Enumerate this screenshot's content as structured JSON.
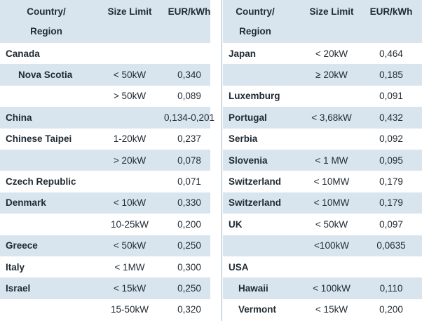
{
  "headers": {
    "country_line1": "Country/",
    "country_line2": "Region",
    "size": "Size Limit",
    "eur": "EUR/kWh"
  },
  "left_rows": [
    {
      "country": "Canada",
      "size": "",
      "eur": "",
      "indent": false,
      "shaded": false
    },
    {
      "country": "Nova Scotia",
      "size": "< 50kW",
      "eur": "0,340",
      "indent": true,
      "shaded": true
    },
    {
      "country": "",
      "size": "> 50kW",
      "eur": "0,089",
      "indent": false,
      "shaded": false
    },
    {
      "country": "China",
      "size": "",
      "eur": "0,134-0,201",
      "indent": false,
      "shaded": true
    },
    {
      "country": "Chinese Taipei",
      "size": "1-20kW",
      "eur": "0,237",
      "indent": false,
      "shaded": false
    },
    {
      "country": "",
      "size": "> 20kW",
      "eur": "0,078",
      "indent": false,
      "shaded": true
    },
    {
      "country": "Czech Republic",
      "size": "",
      "eur": "0,071",
      "indent": false,
      "shaded": false
    },
    {
      "country": "Denmark",
      "size": "< 10kW",
      "eur": "0,330",
      "indent": false,
      "shaded": true
    },
    {
      "country": "",
      "size": "10-25kW",
      "eur": "0,200",
      "indent": false,
      "shaded": false
    },
    {
      "country": "Greece",
      "size": "< 50kW",
      "eur": "0,250",
      "indent": false,
      "shaded": true
    },
    {
      "country": "Italy",
      "size": "< 1MW",
      "eur": "0,300",
      "indent": false,
      "shaded": false
    },
    {
      "country": "Israel",
      "size": "< 15kW",
      "eur": "0,250",
      "indent": false,
      "shaded": true
    },
    {
      "country": "",
      "size": "15-50kW",
      "eur": "0,320",
      "indent": false,
      "shaded": false
    }
  ],
  "right_rows": [
    {
      "country": "Japan",
      "size": "< 20kW",
      "eur": "0,464",
      "indent": false,
      "shaded": false
    },
    {
      "country": "",
      "size": "≥ 20kW",
      "eur": "0,185",
      "indent": false,
      "shaded": true
    },
    {
      "country": "Luxemburg",
      "size": "",
      "eur": "0,091",
      "indent": false,
      "shaded": false
    },
    {
      "country": "Portugal",
      "size": "< 3,68kW",
      "eur": "0,432",
      "indent": false,
      "shaded": true
    },
    {
      "country": "Serbia",
      "size": "",
      "eur": "0,092",
      "indent": false,
      "shaded": false
    },
    {
      "country": "Slovenia",
      "size": "< 1 MW",
      "eur": "0,095",
      "indent": false,
      "shaded": true
    },
    {
      "country": "Switzerland",
      "size": "< 10MW",
      "eur": "0,179",
      "indent": false,
      "shaded": false
    },
    {
      "country": "Switzerland",
      "size": "< 10MW",
      "eur": "0,179",
      "indent": false,
      "shaded": true
    },
    {
      "country": "UK",
      "size": "< 50kW",
      "eur": "0,097",
      "indent": false,
      "shaded": false
    },
    {
      "country": "",
      "size": "<100kW",
      "eur": "0,0635",
      "indent": false,
      "shaded": true
    },
    {
      "country": "USA",
      "size": "",
      "eur": "",
      "indent": false,
      "shaded": false
    },
    {
      "country": "Hawaii",
      "size": "< 100kW",
      "eur": "0,110",
      "indent": true,
      "shaded": true
    },
    {
      "country": "Vermont",
      "size": "< 15kW",
      "eur": "0,200",
      "indent": true,
      "shaded": false
    }
  ]
}
